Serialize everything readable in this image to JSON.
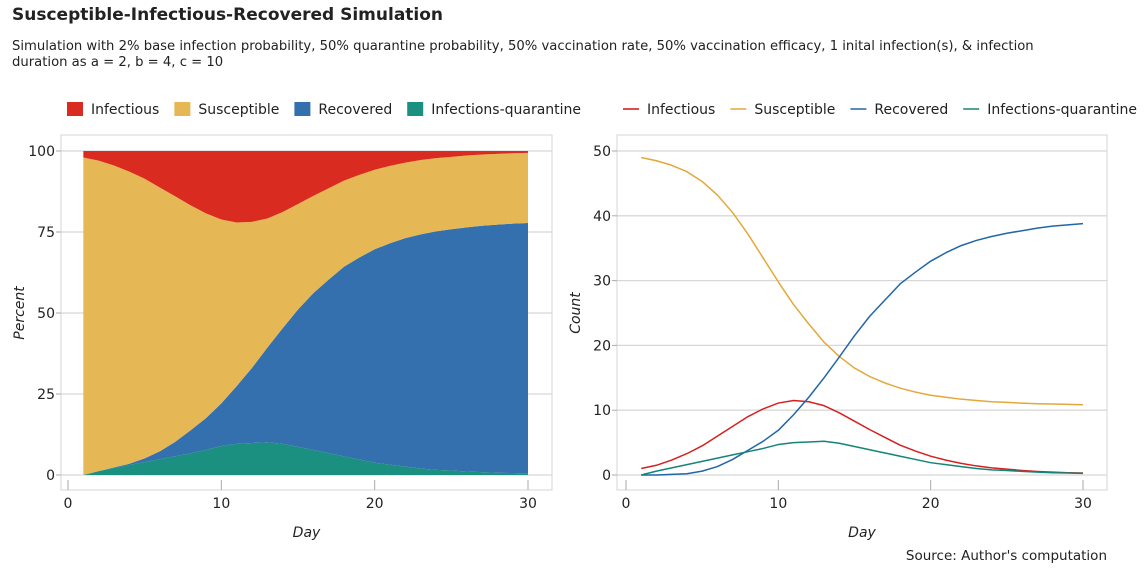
{
  "title": "Susceptible-Infectious-Recovered Simulation",
  "subtitle": "Simulation with 2% base infection probability, 50% quarantine probability, 50% vaccination rate, 50% vaccination efficacy, 1 inital infection(s), & infection duration as a = 2, b = 4, c = 10",
  "source": "Source: Author's computation",
  "colors": {
    "Infectious": "#d92b1f",
    "Susceptible": "#e6b755",
    "Recovered": "#3470ae",
    "Infections-quarantine": "#1b9080"
  },
  "line_colors": {
    "Infectious": "#d62020",
    "Susceptible": "#e3a83a",
    "Recovered": "#2166a6",
    "Infections-quarantine": "#138576"
  },
  "chart_data": [
    {
      "type": "area",
      "stacked": true,
      "normalized": true,
      "xlabel": "Day",
      "ylabel": "Percent",
      "xlim": [
        0,
        30
      ],
      "ylim": [
        0,
        100
      ],
      "xticks": [
        0,
        10,
        20,
        30
      ],
      "yticks": [
        0,
        25,
        50,
        75,
        100
      ],
      "grid": true,
      "legend": "top",
      "legend_order": [
        "Infectious",
        "Susceptible",
        "Recovered",
        "Infections-quarantine"
      ],
      "stack_order_bottom_up": [
        "Infections-quarantine",
        "Recovered",
        "Susceptible",
        "Infectious"
      ]
    },
    {
      "type": "line",
      "xlabel": "Day",
      "ylabel": "Count",
      "xlim": [
        0,
        30
      ],
      "ylim": [
        0,
        50
      ],
      "xticks": [
        0,
        10,
        20,
        30
      ],
      "yticks": [
        0,
        10,
        20,
        30,
        40,
        50
      ],
      "grid": true,
      "legend": "top",
      "x": [
        1,
        2,
        3,
        4,
        5,
        6,
        7,
        8,
        9,
        10,
        11,
        12,
        13,
        14,
        15,
        16,
        17,
        18,
        19,
        20,
        21,
        22,
        23,
        24,
        25,
        26,
        27,
        28,
        29,
        30
      ],
      "series": [
        {
          "name": "Infectious",
          "values": [
            1,
            1.5,
            2.3,
            3.3,
            4.5,
            6,
            7.5,
            9,
            10.2,
            11.1,
            11.5,
            11.3,
            10.7,
            9.6,
            8.3,
            7,
            5.8,
            4.6,
            3.7,
            2.9,
            2.3,
            1.8,
            1.4,
            1.1,
            0.9,
            0.7,
            0.55,
            0.45,
            0.35,
            0.3
          ]
        },
        {
          "name": "Susceptible",
          "values": [
            49,
            48.5,
            47.8,
            46.8,
            45.3,
            43.2,
            40.5,
            37.2,
            33.5,
            29.8,
            26.3,
            23.3,
            20.5,
            18.3,
            16.5,
            15.2,
            14.2,
            13.4,
            12.8,
            12.3,
            12,
            11.7,
            11.5,
            11.3,
            11.2,
            11.1,
            11,
            10.95,
            10.9,
            10.85
          ]
        },
        {
          "name": "Recovered",
          "values": [
            0,
            0,
            0.1,
            0.2,
            0.6,
            1.3,
            2.4,
            3.8,
            5.2,
            6.9,
            9.3,
            12,
            15,
            18.2,
            21.5,
            24.5,
            27,
            29.5,
            31.3,
            33,
            34.3,
            35.4,
            36.2,
            36.8,
            37.3,
            37.7,
            38.1,
            38.4,
            38.6,
            38.8
          ]
        },
        {
          "name": "Infections-quarantine",
          "values": [
            0,
            0.6,
            1.1,
            1.6,
            2.1,
            2.6,
            3.1,
            3.6,
            4.1,
            4.7,
            5,
            5.1,
            5.2,
            4.9,
            4.4,
            3.9,
            3.4,
            2.9,
            2.4,
            1.9,
            1.6,
            1.3,
            1,
            0.8,
            0.7,
            0.55,
            0.45,
            0.35,
            0.3,
            0.25
          ]
        }
      ]
    }
  ]
}
